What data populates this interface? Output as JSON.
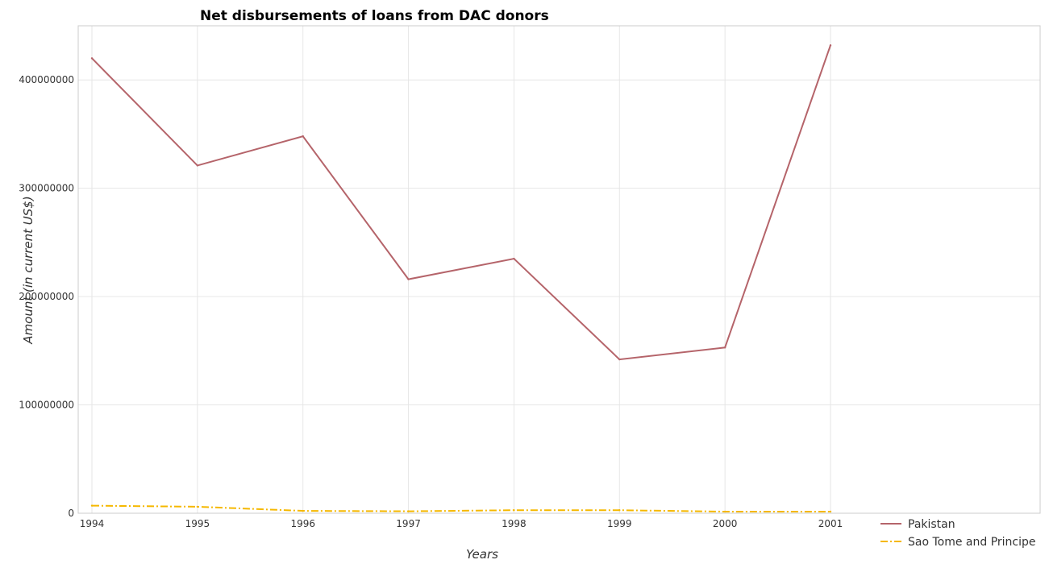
{
  "chart_data": {
    "type": "line",
    "title": "Net disbursements of loans from DAC donors",
    "xlabel": "Years",
    "ylabel": "Amount (in current US$)",
    "categories": [
      "1994",
      "1995",
      "1996",
      "1997",
      "1998",
      "1999",
      "2000",
      "2001"
    ],
    "ylim": [
      0,
      450000000
    ],
    "yticks": [
      0,
      100000000,
      200000000,
      300000000,
      400000000
    ],
    "ytick_labels": [
      "0",
      "100000000",
      "200000000",
      "300000000",
      "400000000"
    ],
    "grid": true,
    "legend_position": "bottom-right",
    "series": [
      {
        "name": "Pakistan",
        "color": "#b5646a",
        "dash": "solid",
        "values": [
          420000000,
          321000000,
          348000000,
          216000000,
          235000000,
          142000000,
          153000000,
          432000000
        ]
      },
      {
        "name": "Sao Tome and Principe",
        "color": "#f5b800",
        "dash": "dashdot",
        "values": [
          7000000,
          6000000,
          2200000,
          1800000,
          2800000,
          2800000,
          1500000,
          1500000
        ]
      }
    ]
  }
}
